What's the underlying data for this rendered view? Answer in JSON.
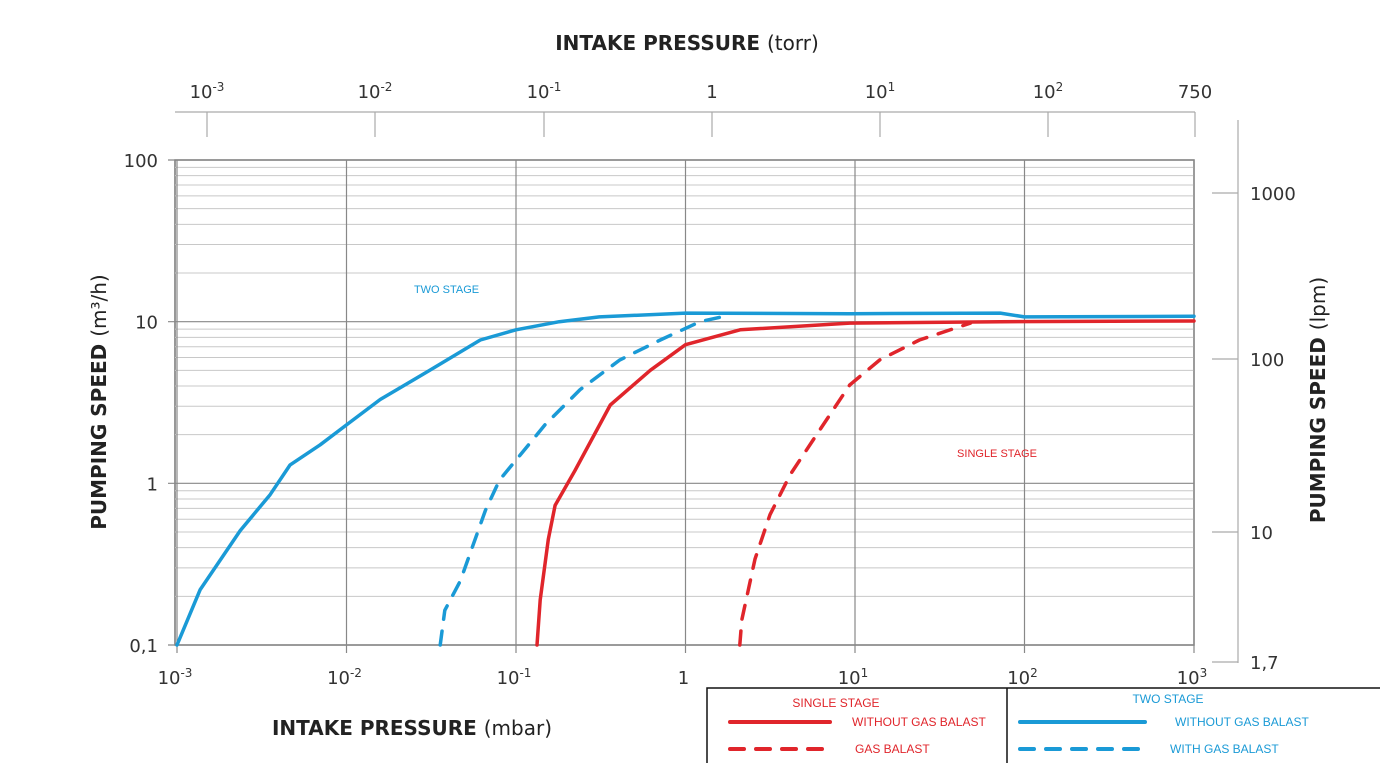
{
  "chart_data": {
    "type": "line",
    "title": "",
    "x_scale": "log",
    "y_scale": "log",
    "xlim": [
      0.001,
      1000
    ],
    "ylim": [
      0.1,
      100
    ],
    "xlabel_bold": "INTAKE PRESSURE",
    "xlabel_unit": "(mbar)",
    "ylabel_bold": "PUMPING SPEED",
    "ylabel_unit": "(m³/h)",
    "top_xlabel_bold": "INTAKE PRESSURE",
    "top_xlabel_unit": "(torr)",
    "right_ylabel_bold": "PUMPING SPEED",
    "right_ylabel_unit": "(lpm)",
    "x_ticks": [
      {
        "value": 0.001,
        "base": "10",
        "exp": "-3"
      },
      {
        "value": 0.01,
        "base": "10",
        "exp": "-2"
      },
      {
        "value": 0.1,
        "base": "10",
        "exp": "-1"
      },
      {
        "value": 1,
        "base": "1",
        "exp": ""
      },
      {
        "value": 10,
        "base": "10",
        "exp": "1"
      },
      {
        "value": 100,
        "base": "10",
        "exp": "2"
      },
      {
        "value": 1000,
        "base": "10",
        "exp": "3"
      }
    ],
    "y_ticks": [
      {
        "value": 100,
        "label": "100"
      },
      {
        "value": 10,
        "label": "10"
      },
      {
        "value": 1,
        "label": "1"
      },
      {
        "value": 0.1,
        "label": "0,1"
      }
    ],
    "top_ticks": [
      {
        "torr": 0.001,
        "base": "10",
        "exp": "-3"
      },
      {
        "torr": 0.01,
        "base": "10",
        "exp": "-2"
      },
      {
        "torr": 0.1,
        "base": "10",
        "exp": "-1"
      },
      {
        "torr": 1,
        "base": "1",
        "exp": ""
      },
      {
        "torr": 10,
        "base": "10",
        "exp": "1"
      },
      {
        "torr": 100,
        "base": "10",
        "exp": "2"
      },
      {
        "torr": 750,
        "base": "750",
        "exp": ""
      }
    ],
    "right_ticks": [
      {
        "lpm": 1000,
        "label": "1000"
      },
      {
        "lpm": 100,
        "label": "100"
      },
      {
        "lpm": 10,
        "label": "10"
      },
      {
        "lpm": 1.7,
        "label": "1,7"
      }
    ],
    "grid": true,
    "annotations": [
      {
        "text": "TWO STAGE",
        "x": 0.025,
        "y": 15,
        "color": "#1a9ad6"
      },
      {
        "text": "SINGLE STAGE",
        "x": 40,
        "y": 1.45,
        "color": "#e0252b"
      }
    ],
    "series": [
      {
        "name": "TWO STAGE WITHOUT GAS BALAST",
        "color": "#1a9ad6",
        "dash": false,
        "x": [
          0.001,
          0.00137,
          0.00236,
          0.00354,
          0.00465,
          0.007,
          0.01,
          0.0158,
          0.031,
          0.0616,
          0.1,
          0.18,
          0.31,
          1,
          9.3,
          72,
          100,
          1000
        ],
        "y": [
          0.1,
          0.22,
          0.51,
          0.85,
          1.3,
          1.73,
          2.3,
          3.3,
          5.0,
          7.7,
          8.9,
          10,
          10.7,
          11.3,
          11.2,
          11.3,
          10.7,
          10.8
        ]
      },
      {
        "name": "TWO STAGE WITH GAS BALAST",
        "color": "#1a9ad6",
        "dash": true,
        "x": [
          0.0357,
          0.038,
          0.047,
          0.066,
          0.08,
          0.106,
          0.148,
          0.239,
          0.41,
          0.71,
          1.22,
          1.83
        ],
        "y": [
          0.1,
          0.164,
          0.25,
          0.68,
          1.05,
          1.5,
          2.3,
          3.8,
          5.8,
          7.7,
          10,
          11
        ]
      },
      {
        "name": "SINGLE STAGE WITHOUT GAS BALAST",
        "color": "#e0252b",
        "dash": false,
        "x": [
          0.133,
          0.139,
          0.155,
          0.17,
          0.223,
          0.36,
          0.62,
          1.0,
          2.1,
          9.3,
          72,
          1000
        ],
        "y": [
          0.1,
          0.19,
          0.45,
          0.73,
          1.2,
          3.05,
          5.0,
          7.2,
          8.9,
          9.8,
          10,
          10.1
        ]
      },
      {
        "name": "SINGLE STAGE GAS BALAST",
        "color": "#e0252b",
        "dash": true,
        "x": [
          2.09,
          2.15,
          2.57,
          3.15,
          4.14,
          6.2,
          9.3,
          14,
          24,
          48
        ],
        "y": [
          0.1,
          0.143,
          0.34,
          0.64,
          1.13,
          2.14,
          4.06,
          5.8,
          7.7,
          9.8
        ]
      }
    ],
    "legend": {
      "placement": "bottom-right",
      "groups": [
        {
          "title": "SINGLE STAGE",
          "color": "#e0252b",
          "items": [
            "WITHOUT GAS BALAST",
            "GAS BALAST"
          ]
        },
        {
          "title": "TWO STAGE",
          "color": "#1a9ad6",
          "items": [
            "WITHOUT GAS BALAST",
            "WITH GAS BALAST"
          ]
        }
      ]
    }
  }
}
